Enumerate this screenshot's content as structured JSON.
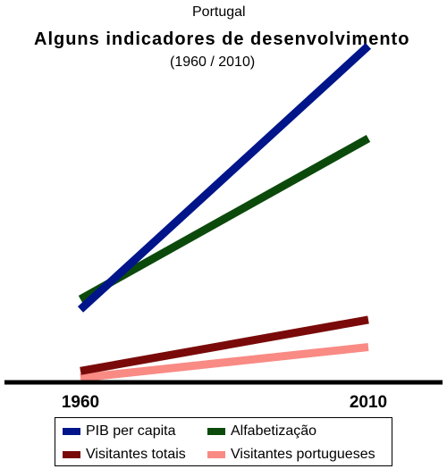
{
  "chart_data": {
    "type": "line",
    "pretitle": "Portugal",
    "title": "Alguns indicadores de desenvolvimento",
    "subtitle": "(1960 / 2010)",
    "x": [
      "1960",
      "2010"
    ],
    "ylim": [
      0,
      100
    ],
    "grid": false,
    "legend_position": "bottom",
    "series": [
      {
        "name": "PIB per capita",
        "values": [
          20,
          97
        ],
        "color": "#00158a"
      },
      {
        "name": "Alfabetização",
        "values": [
          23,
          70
        ],
        "color": "#0b4a0b"
      },
      {
        "name": "Visitantes totais",
        "values": [
          2,
          17
        ],
        "color": "#7a0a0a"
      },
      {
        "name": "Visitantes portugueses",
        "values": [
          0,
          9
        ],
        "color": "#f98a84"
      }
    ]
  }
}
